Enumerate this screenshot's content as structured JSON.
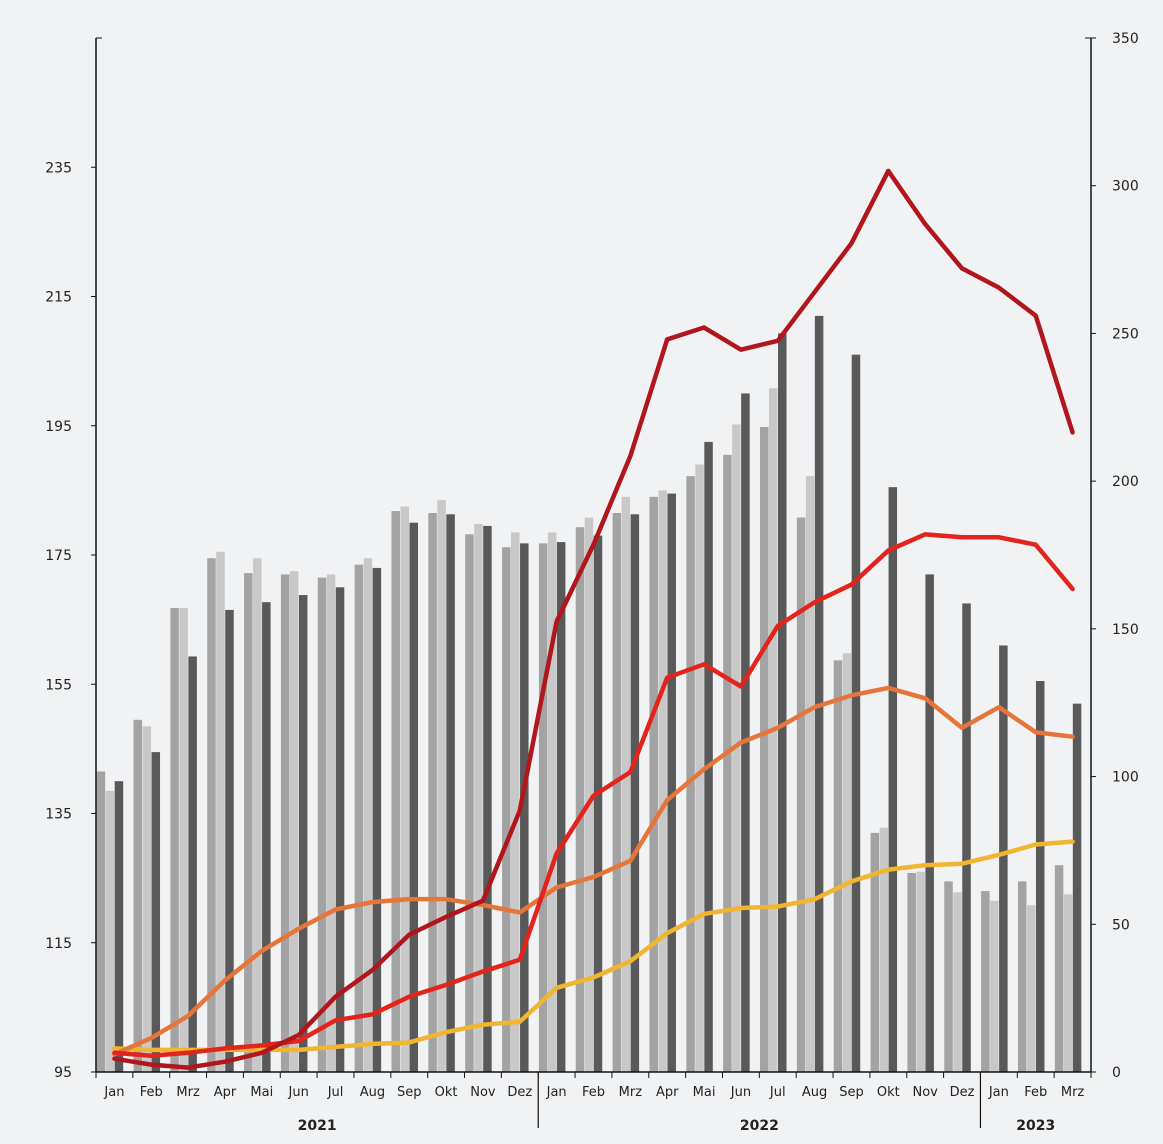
{
  "chart_data": {
    "type": "bar",
    "title": "",
    "xlabel": "",
    "ylabel": "",
    "background": "#f1f2f4",
    "y_left": {
      "ylim": [
        95,
        255
      ],
      "ticks": [
        95,
        115,
        135,
        155,
        175,
        195,
        215,
        235
      ]
    },
    "y_right": {
      "ylim": [
        0,
        350
      ],
      "ticks": [
        0,
        50,
        100,
        150,
        200,
        250,
        300,
        350
      ]
    },
    "categories": [
      "Jan",
      "Feb",
      "Mrz",
      "Apr",
      "Mai",
      "Jun",
      "Jul",
      "Aug",
      "Sep",
      "Okt",
      "Nov",
      "Dez",
      "Jan",
      "Feb",
      "Mrz",
      "Apr",
      "Mai",
      "Jun",
      "Jul",
      "Aug",
      "Sep",
      "Okt",
      "Nov",
      "Dez",
      "Jan",
      "Feb",
      "Mrz"
    ],
    "years": [
      {
        "label": "2021",
        "start": 0,
        "end": 11
      },
      {
        "label": "2022",
        "start": 12,
        "end": 23
      },
      {
        "label": "2023",
        "start": 24,
        "end": 26
      }
    ],
    "bar_series": [
      {
        "color": "#a3a3a3",
        "axis": "left",
        "values": [
          141.5,
          149.5,
          166.8,
          174.5,
          172.2,
          172.0,
          171.5,
          173.5,
          181.8,
          181.5,
          178.2,
          176.2,
          176.8,
          179.3,
          181.5,
          184.0,
          187.2,
          190.5,
          194.8,
          180.8,
          158.7,
          132.0,
          125.8,
          124.5,
          123.0,
          124.5,
          127.0
        ]
      },
      {
        "color": "#c8c8c8",
        "axis": "left",
        "values": [
          138.5,
          148.5,
          166.8,
          175.5,
          174.5,
          172.5,
          172.0,
          174.5,
          182.5,
          183.5,
          179.8,
          178.5,
          178.5,
          180.8,
          184.0,
          185.0,
          189.0,
          195.2,
          200.8,
          187.2,
          159.8,
          132.8,
          126.0,
          122.8,
          121.5,
          120.8,
          122.5
        ]
      },
      {
        "color": "#595959",
        "axis": "left",
        "values": [
          140.0,
          144.5,
          159.3,
          166.5,
          167.7,
          168.8,
          170.0,
          173.0,
          180.0,
          181.3,
          179.5,
          176.8,
          177.0,
          178.0,
          181.3,
          184.5,
          192.5,
          200.0,
          209.3,
          212.0,
          206.0,
          185.5,
          172.0,
          167.5,
          161.0,
          155.5,
          152.0
        ]
      }
    ],
    "series": [
      {
        "color": "#b0161b",
        "axis": "right",
        "values": [
          4.5,
          2.5,
          1.5,
          3.5,
          6.5,
          12.5,
          25.5,
          34.5,
          46.5,
          52.5,
          58.0,
          88.5,
          152.5,
          178.5,
          208.5,
          248.0,
          252.0,
          244.5,
          247.5,
          264.0,
          280.5,
          305.0,
          287.0,
          272.0,
          265.5,
          256.0,
          216.5
        ]
      },
      {
        "color": "#e3241d",
        "axis": "right",
        "values": [
          6.5,
          5.5,
          6.5,
          8.0,
          9.0,
          10.5,
          17.5,
          19.5,
          25.5,
          29.5,
          34.0,
          38.0,
          74.0,
          93.5,
          101.5,
          133.5,
          138.0,
          130.5,
          151.0,
          159.0,
          165.0,
          176.5,
          182.0,
          181.0,
          181.0,
          178.5,
          163.5
        ]
      },
      {
        "color": "#e6753a",
        "axis": "right",
        "values": [
          6.0,
          11.5,
          19.0,
          31.0,
          41.0,
          48.5,
          55.0,
          57.5,
          58.5,
          58.5,
          56.5,
          54.0,
          62.5,
          66.0,
          71.5,
          92.0,
          102.5,
          111.5,
          116.5,
          123.5,
          127.5,
          130.0,
          126.5,
          116.5,
          123.5,
          115.0,
          113.5
        ]
      },
      {
        "color": "#f1b52f",
        "axis": "right",
        "values": [
          8.0,
          7.5,
          7.5,
          7.5,
          7.5,
          7.5,
          8.5,
          9.5,
          10.0,
          13.5,
          16.0,
          17.0,
          28.5,
          32.0,
          37.5,
          47.0,
          53.5,
          55.5,
          56.0,
          58.5,
          64.5,
          68.5,
          70.0,
          70.5,
          73.5,
          77.0,
          78.0
        ]
      }
    ]
  }
}
